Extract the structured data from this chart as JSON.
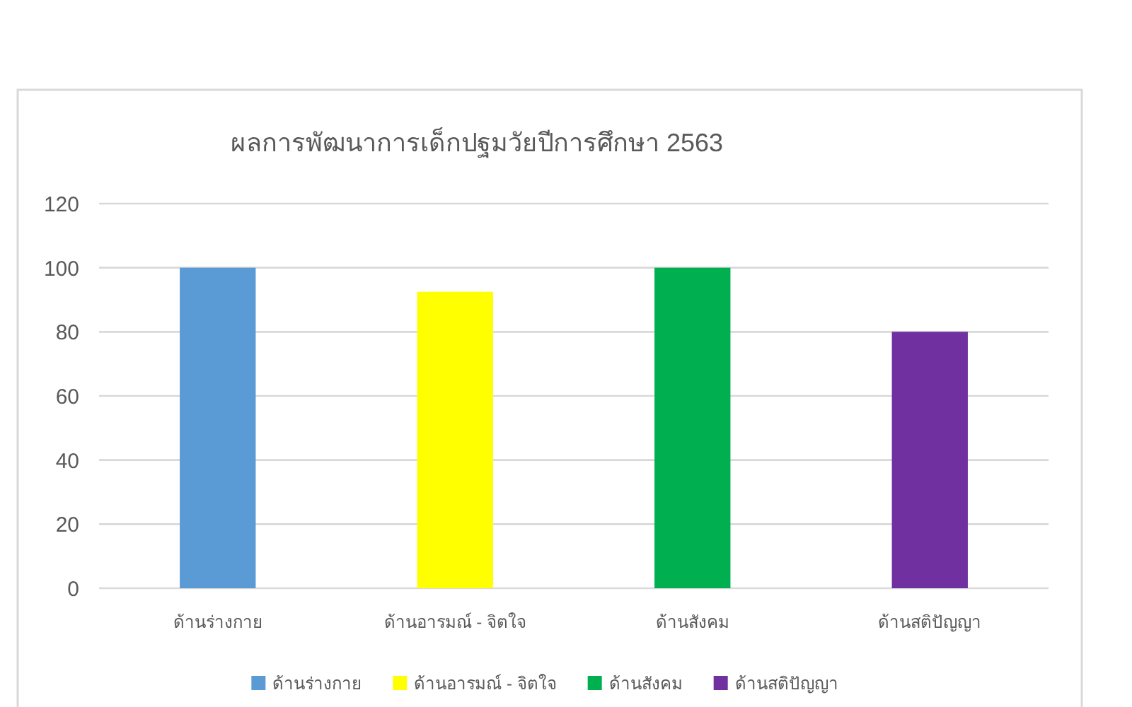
{
  "chart_data": {
    "type": "bar",
    "title": "ผลการพัฒนาการเด็กปฐมวัยปีการศึกษา 2563",
    "categories": [
      "ด้านร่างกาย",
      "ด้านอารมณ์ - จิตใจ",
      "ด้านสังคม",
      "ด้านสติปัญญา"
    ],
    "series": [
      {
        "name": "ด้านร่างกาย",
        "color": "#5b9bd5",
        "values": [
          100,
          null,
          null,
          null
        ]
      },
      {
        "name": "ด้านอารมณ์ - จิตใจ",
        "color": "#ffff00",
        "values": [
          null,
          92.5,
          null,
          null
        ]
      },
      {
        "name": "ด้านสังคม",
        "color": "#00b050",
        "values": [
          null,
          null,
          100,
          null
        ]
      },
      {
        "name": "ด้านสติปัญญา",
        "color": "#7030a0",
        "values": [
          null,
          null,
          null,
          80
        ]
      }
    ],
    "ylim": [
      0,
      120
    ],
    "yticks": [
      0,
      20,
      40,
      60,
      80,
      100,
      120
    ],
    "grid": "y",
    "legend": "bottom"
  }
}
